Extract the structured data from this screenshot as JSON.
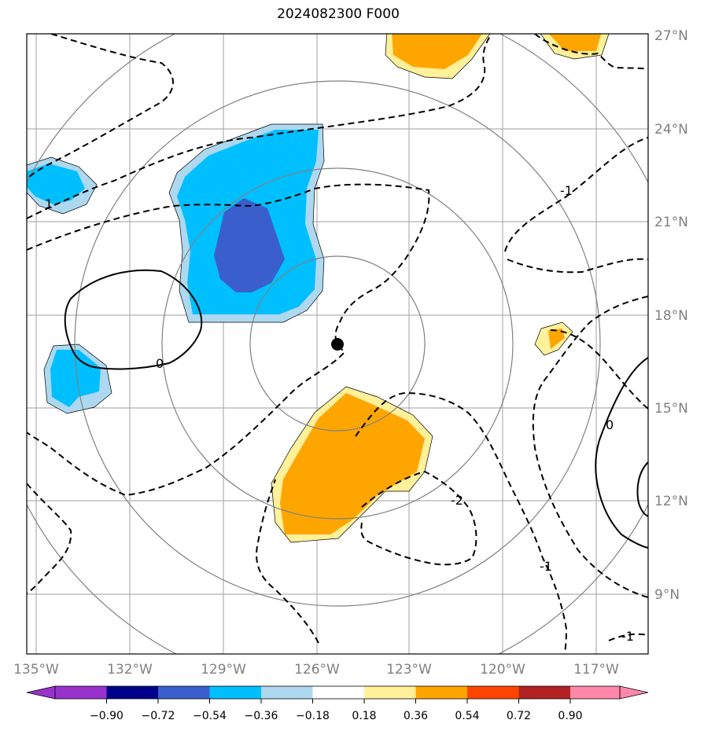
{
  "title": "2024082300 F000",
  "map": {
    "lon_ticks": [
      "135°W",
      "132°W",
      "129°W",
      "126°W",
      "123°W",
      "120°W",
      "117°W"
    ],
    "lat_ticks": [
      "27°N",
      "24°N",
      "21°N",
      "18°N",
      "15°N",
      "12°N",
      "9°N"
    ],
    "center_marker": "storm-center-dot",
    "contour_labels": [
      "0",
      "1",
      "-1",
      "0",
      "-2",
      "-1",
      "-1",
      "1"
    ],
    "range_rings": 4
  },
  "colorbar": {
    "ticks": [
      "−0.90",
      "−0.72",
      "−0.54",
      "−0.36",
      "−0.18",
      "0.18",
      "0.36",
      "0.54",
      "0.72",
      "0.90"
    ],
    "colors": [
      "#9932cc",
      "#00008b",
      "#3a5fcd",
      "#00bfff",
      "#add8f0",
      "#ffffff",
      "#fff09a",
      "#ffa500",
      "#ff4500",
      "#b22222",
      "#ff88aa"
    ]
  },
  "colors": {
    "grid": "#b0b0b0",
    "rings": "#808080",
    "positive_fill": "#ffa500",
    "positive_edge": "#fff09a",
    "negative_fill": "#00bfff",
    "negative_edge": "#add8f0",
    "strong_negative": "#3a5fcd"
  }
}
